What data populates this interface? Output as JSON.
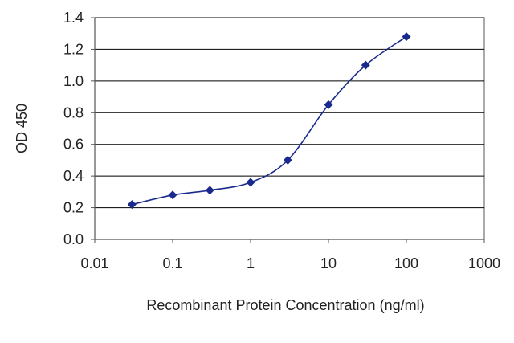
{
  "chart_data": {
    "type": "line",
    "title": "",
    "xlabel": "Recombinant Protein Concentration (ng/ml)",
    "ylabel": "OD 450",
    "x_scale": "log",
    "xlim": [
      0.01,
      1000
    ],
    "ylim": [
      0.0,
      1.4
    ],
    "x_ticks": [
      0.01,
      0.1,
      1,
      10,
      100,
      1000
    ],
    "x_tick_labels": [
      "0.01",
      "0.1",
      "1",
      "10",
      "100",
      "1000"
    ],
    "y_ticks": [
      0.0,
      0.2,
      0.4,
      0.6,
      0.8,
      1.0,
      1.2,
      1.4
    ],
    "y_tick_labels": [
      "0.0",
      "0.2",
      "0.4",
      "0.6",
      "0.8",
      "1.0",
      "1.2",
      "1.4"
    ],
    "grid": "horizontal",
    "legend": "none",
    "series": [
      {
        "x": [
          0.03,
          0.1,
          0.3,
          1,
          3,
          10,
          30,
          100
        ],
        "y": [
          0.22,
          0.28,
          0.31,
          0.36,
          0.5,
          0.85,
          1.1,
          1.28
        ],
        "color": "#1a2a8c",
        "marker": "diamond"
      }
    ],
    "colors": {
      "plot_background": "#ffffff",
      "gridline": "#000000",
      "axis": "#555555",
      "text": "#222222"
    }
  }
}
